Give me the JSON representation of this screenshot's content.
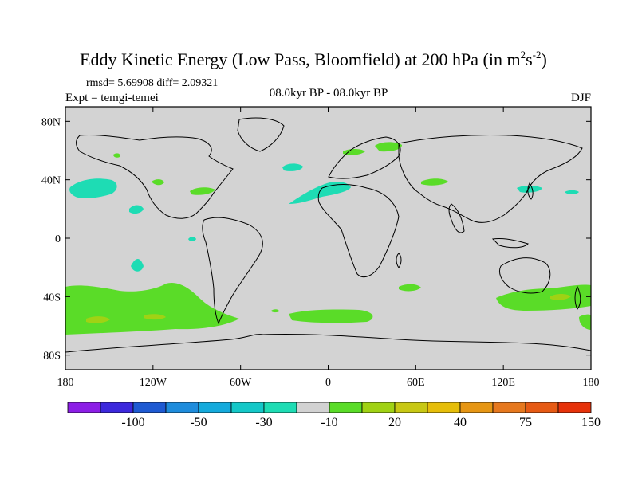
{
  "title": {
    "main": "Eddy Kinetic Energy (Low Pass, Bloomfield) at 200 hPa (in m",
    "sup1": "2",
    "mid": "s",
    "sup2": "-2",
    "end": ")"
  },
  "stats": "rmsd= 5.69908 diff= 2.09321",
  "expt": "Expt = temgi-temei",
  "period": "08.0kyr BP - 08.0kyr BP",
  "season": "DJF",
  "lat_labels": [
    "80N",
    "40N",
    "0",
    "40S",
    "80S"
  ],
  "lon_labels": [
    "180",
    "120W",
    "60W",
    "0",
    "60E",
    "120E",
    "180"
  ],
  "colorbar": {
    "colors": [
      "#8c1ee6",
      "#3c28dc",
      "#1e5ad2",
      "#1e8cdc",
      "#14aadc",
      "#14c8c8",
      "#1edcb4",
      "#d2d2d2",
      "#5adc28",
      "#a0d214",
      "#c8c814",
      "#e6be0a",
      "#e69614",
      "#e6781e",
      "#e65a14",
      "#e6320a"
    ],
    "labels": [
      "-100",
      "-50",
      "-30",
      "-10",
      "20",
      "40",
      "75",
      "150"
    ],
    "label_after_box": [
      1,
      3,
      5,
      7,
      9,
      11,
      13,
      15
    ]
  },
  "map_data": {
    "type": "filled-contour-map",
    "background_color": "#d3d3d3",
    "lon_range": [
      -180,
      180
    ],
    "lat_range": [
      -90,
      90
    ],
    "positive_regions": [
      {
        "name": "southern-ocean-pacific",
        "color": "#5adc28"
      },
      {
        "name": "southern-ocean-atlantic",
        "color": "#5adc28"
      },
      {
        "name": "australia-tasman",
        "color": "#5adc28"
      },
      {
        "name": "scandinavia",
        "color": "#5adc28"
      },
      {
        "name": "north-america",
        "color": "#5adc28"
      }
    ],
    "negative_regions": [
      {
        "name": "north-pacific",
        "color": "#1edcb4"
      },
      {
        "name": "north-africa-atlantic",
        "color": "#1edcb4"
      },
      {
        "name": "japan",
        "color": "#1edcb4"
      }
    ]
  }
}
